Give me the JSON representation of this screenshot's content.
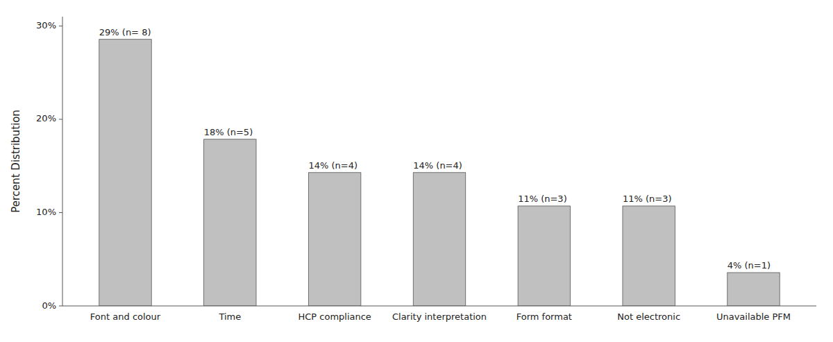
{
  "chart_data": {
    "type": "bar",
    "categories": [
      "Font and colour",
      "Time",
      "HCP compliance",
      "Clarity interpretation",
      "Form format",
      "Not electronic",
      "Unavailable PFM"
    ],
    "values": [
      28.57,
      17.86,
      14.29,
      14.29,
      10.71,
      10.71,
      3.57
    ],
    "value_labels": [
      "29% (n= 8)",
      "18% (n=5)",
      "14% (n=4)",
      "14% (n=4)",
      "11% (n=3)",
      "11% (n=3)",
      "4% (n=1)"
    ],
    "data_labels": true,
    "color": "#C0C0C0",
    "y_label": "Percent Distribution",
    "ylim": [
      0,
      31
    ],
    "yticks": [
      {
        "value": 0,
        "label": "0%"
      },
      {
        "value": 10,
        "label": "10%"
      },
      {
        "value": 20,
        "label": "20%"
      },
      {
        "value": 30,
        "label": "30%"
      }
    ],
    "grid": false
  }
}
